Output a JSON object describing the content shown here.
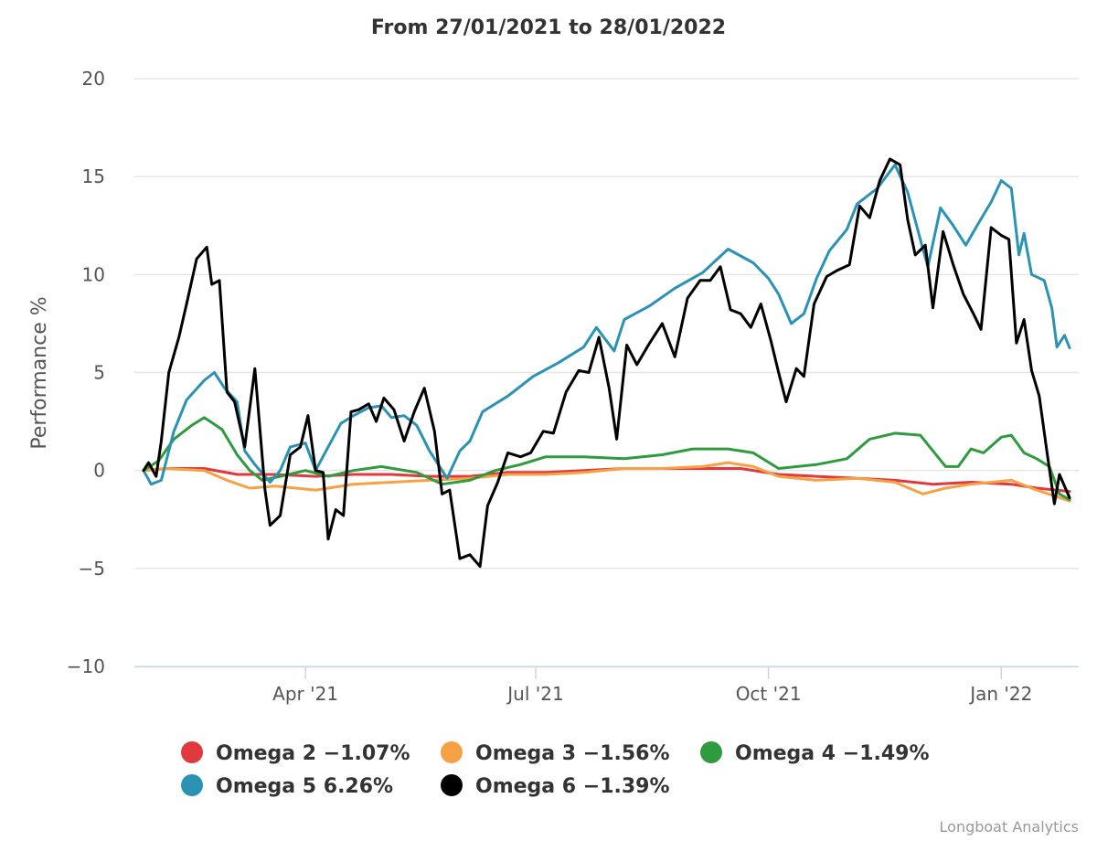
{
  "chart_data": {
    "type": "line",
    "title": "From 27/01/2021 to 28/01/2022",
    "ylabel": "Performance %",
    "xlabel": "",
    "ylim": [
      -10,
      20
    ],
    "yticks": [
      -10,
      -5,
      0,
      5,
      10,
      15,
      20
    ],
    "ytick_labels": [
      "−10",
      "−5",
      "0",
      "5",
      "10",
      "15",
      "20"
    ],
    "xlim": [
      "2021-01-27",
      "2022-01-28"
    ],
    "xticks": [
      {
        "date": "2021-04-01",
        "label": "Apr '21"
      },
      {
        "date": "2021-07-01",
        "label": "Jul '21"
      },
      {
        "date": "2021-10-01",
        "label": "Oct '21"
      },
      {
        "date": "2022-01-01",
        "label": "Jan '22"
      }
    ],
    "grid": "horizontal",
    "legend_position": "bottom",
    "credits": "Longboat Analytics",
    "series": [
      {
        "name": "Omega 2",
        "legend_label": "Omega 2 −1.07%",
        "color": "#e0393e",
        "points": [
          [
            "2021-01-27",
            0
          ],
          [
            "2021-02-05",
            0.1
          ],
          [
            "2021-02-20",
            0.1
          ],
          [
            "2021-03-05",
            -0.2
          ],
          [
            "2021-03-20",
            -0.2
          ],
          [
            "2021-04-05",
            -0.3
          ],
          [
            "2021-04-20",
            -0.2
          ],
          [
            "2021-05-05",
            -0.2
          ],
          [
            "2021-05-20",
            -0.3
          ],
          [
            "2021-06-05",
            -0.3
          ],
          [
            "2021-06-20",
            -0.1
          ],
          [
            "2021-07-05",
            -0.1
          ],
          [
            "2021-07-20",
            0
          ],
          [
            "2021-08-05",
            0.1
          ],
          [
            "2021-08-20",
            0.1
          ],
          [
            "2021-09-05",
            0.1
          ],
          [
            "2021-09-20",
            0.1
          ],
          [
            "2021-10-05",
            -0.2
          ],
          [
            "2021-10-20",
            -0.3
          ],
          [
            "2021-11-05",
            -0.4
          ],
          [
            "2021-11-20",
            -0.5
          ],
          [
            "2021-12-05",
            -0.7
          ],
          [
            "2021-12-20",
            -0.6
          ],
          [
            "2022-01-05",
            -0.7
          ],
          [
            "2022-01-15",
            -0.9
          ],
          [
            "2022-01-28",
            -1.07
          ]
        ]
      },
      {
        "name": "Omega 3",
        "legend_label": "Omega 3 −1.56%",
        "color": "#f7a145",
        "points": [
          [
            "2021-01-27",
            0
          ],
          [
            "2021-02-05",
            0.1
          ],
          [
            "2021-02-20",
            0
          ],
          [
            "2021-03-01",
            -0.5
          ],
          [
            "2021-03-10",
            -0.9
          ],
          [
            "2021-03-20",
            -0.8
          ],
          [
            "2021-04-05",
            -1.0
          ],
          [
            "2021-04-20",
            -0.7
          ],
          [
            "2021-05-05",
            -0.6
          ],
          [
            "2021-05-20",
            -0.5
          ],
          [
            "2021-06-05",
            -0.4
          ],
          [
            "2021-06-20",
            -0.2
          ],
          [
            "2021-07-05",
            -0.2
          ],
          [
            "2021-07-20",
            -0.1
          ],
          [
            "2021-08-05",
            0.1
          ],
          [
            "2021-08-20",
            0.1
          ],
          [
            "2021-09-05",
            0.2
          ],
          [
            "2021-09-15",
            0.4
          ],
          [
            "2021-09-25",
            0.2
          ],
          [
            "2021-10-05",
            -0.3
          ],
          [
            "2021-10-20",
            -0.5
          ],
          [
            "2021-11-05",
            -0.4
          ],
          [
            "2021-11-20",
            -0.6
          ],
          [
            "2021-12-01",
            -1.2
          ],
          [
            "2021-12-10",
            -0.9
          ],
          [
            "2021-12-20",
            -0.7
          ],
          [
            "2022-01-05",
            -0.5
          ],
          [
            "2022-01-15",
            -1.0
          ],
          [
            "2022-01-28",
            -1.56
          ]
        ]
      },
      {
        "name": "Omega 4",
        "legend_label": "Omega 4 −1.49%",
        "color": "#2f9b3f",
        "points": [
          [
            "2021-01-27",
            0
          ],
          [
            "2021-02-02",
            0.5
          ],
          [
            "2021-02-08",
            1.6
          ],
          [
            "2021-02-15",
            2.3
          ],
          [
            "2021-02-20",
            2.7
          ],
          [
            "2021-02-27",
            2.1
          ],
          [
            "2021-03-05",
            0.8
          ],
          [
            "2021-03-10",
            0
          ],
          [
            "2021-03-15",
            -0.5
          ],
          [
            "2021-03-22",
            -0.3
          ],
          [
            "2021-04-01",
            0
          ],
          [
            "2021-04-10",
            -0.3
          ],
          [
            "2021-04-20",
            0
          ],
          [
            "2021-05-01",
            0.2
          ],
          [
            "2021-05-15",
            -0.1
          ],
          [
            "2021-05-25",
            -0.7
          ],
          [
            "2021-06-05",
            -0.5
          ],
          [
            "2021-06-15",
            0
          ],
          [
            "2021-06-25",
            0.3
          ],
          [
            "2021-07-05",
            0.7
          ],
          [
            "2021-07-20",
            0.7
          ],
          [
            "2021-08-05",
            0.6
          ],
          [
            "2021-08-20",
            0.8
          ],
          [
            "2021-09-01",
            1.1
          ],
          [
            "2021-09-15",
            1.1
          ],
          [
            "2021-09-25",
            0.9
          ],
          [
            "2021-10-05",
            0.1
          ],
          [
            "2021-10-20",
            0.3
          ],
          [
            "2021-11-01",
            0.6
          ],
          [
            "2021-11-10",
            1.6
          ],
          [
            "2021-11-20",
            1.9
          ],
          [
            "2021-11-30",
            1.8
          ],
          [
            "2021-12-05",
            1.0
          ],
          [
            "2021-12-10",
            0.2
          ],
          [
            "2021-12-15",
            0.2
          ],
          [
            "2021-12-20",
            1.1
          ],
          [
            "2021-12-25",
            0.9
          ],
          [
            "2022-01-01",
            1.7
          ],
          [
            "2022-01-05",
            1.8
          ],
          [
            "2022-01-10",
            0.9
          ],
          [
            "2022-01-15",
            0.6
          ],
          [
            "2022-01-20",
            0.2
          ],
          [
            "2022-01-24",
            -1.2
          ],
          [
            "2022-01-28",
            -1.49
          ]
        ]
      },
      {
        "name": "Omega 5",
        "legend_label": "Omega 5 6.26%",
        "color": "#2a93b3",
        "points": [
          [
            "2021-01-27",
            0
          ],
          [
            "2021-01-30",
            -0.7
          ],
          [
            "2021-02-03",
            -0.5
          ],
          [
            "2021-02-08",
            2.0
          ],
          [
            "2021-02-13",
            3.6
          ],
          [
            "2021-02-20",
            4.6
          ],
          [
            "2021-02-24",
            5.0
          ],
          [
            "2021-02-28",
            4.2
          ],
          [
            "2021-03-05",
            3.5
          ],
          [
            "2021-03-08",
            1.0
          ],
          [
            "2021-03-12",
            0.3
          ],
          [
            "2021-03-18",
            -0.6
          ],
          [
            "2021-03-22",
            0
          ],
          [
            "2021-03-26",
            1.2
          ],
          [
            "2021-04-01",
            1.4
          ],
          [
            "2021-04-05",
            0
          ],
          [
            "2021-04-10",
            1.2
          ],
          [
            "2021-04-15",
            2.4
          ],
          [
            "2021-04-20",
            2.8
          ],
          [
            "2021-04-26",
            3.2
          ],
          [
            "2021-05-01",
            3.3
          ],
          [
            "2021-05-05",
            2.7
          ],
          [
            "2021-05-10",
            2.8
          ],
          [
            "2021-05-15",
            2.3
          ],
          [
            "2021-05-20",
            1.0
          ],
          [
            "2021-05-27",
            -0.4
          ],
          [
            "2021-06-01",
            1.0
          ],
          [
            "2021-06-05",
            1.5
          ],
          [
            "2021-06-10",
            3.0
          ],
          [
            "2021-06-20",
            3.8
          ],
          [
            "2021-06-30",
            4.8
          ],
          [
            "2021-07-10",
            5.5
          ],
          [
            "2021-07-20",
            6.3
          ],
          [
            "2021-07-25",
            7.3
          ],
          [
            "2021-08-01",
            6.1
          ],
          [
            "2021-08-05",
            7.7
          ],
          [
            "2021-08-15",
            8.4
          ],
          [
            "2021-08-25",
            9.3
          ],
          [
            "2021-09-05",
            10.1
          ],
          [
            "2021-09-15",
            11.3
          ],
          [
            "2021-09-25",
            10.6
          ],
          [
            "2021-10-01",
            9.8
          ],
          [
            "2021-10-05",
            9.0
          ],
          [
            "2021-10-10",
            7.5
          ],
          [
            "2021-10-15",
            8.0
          ],
          [
            "2021-10-20",
            9.8
          ],
          [
            "2021-10-25",
            11.2
          ],
          [
            "2021-11-01",
            12.3
          ],
          [
            "2021-11-05",
            13.6
          ],
          [
            "2021-11-13",
            14.4
          ],
          [
            "2021-11-20",
            15.6
          ],
          [
            "2021-11-25",
            14.2
          ],
          [
            "2021-11-30",
            11.8
          ],
          [
            "2021-12-03",
            10.4
          ],
          [
            "2021-12-08",
            13.4
          ],
          [
            "2021-12-13",
            12.5
          ],
          [
            "2021-12-18",
            11.5
          ],
          [
            "2021-12-22",
            12.4
          ],
          [
            "2021-12-28",
            13.7
          ],
          [
            "2022-01-01",
            14.8
          ],
          [
            "2022-01-05",
            14.4
          ],
          [
            "2022-01-08",
            11.0
          ],
          [
            "2022-01-10",
            12.1
          ],
          [
            "2022-01-13",
            10.0
          ],
          [
            "2022-01-18",
            9.7
          ],
          [
            "2022-01-21",
            8.3
          ],
          [
            "2022-01-23",
            6.3
          ],
          [
            "2022-01-26",
            6.9
          ],
          [
            "2022-01-28",
            6.26
          ]
        ]
      },
      {
        "name": "Omega 6",
        "legend_label": "Omega 6 −1.39%",
        "color": "#000000",
        "points": [
          [
            "2021-01-27",
            0
          ],
          [
            "2021-01-29",
            0.4
          ],
          [
            "2021-02-01",
            -0.3
          ],
          [
            "2021-02-03",
            1.5
          ],
          [
            "2021-02-06",
            5.0
          ],
          [
            "2021-02-10",
            6.8
          ],
          [
            "2021-02-13",
            8.5
          ],
          [
            "2021-02-17",
            10.8
          ],
          [
            "2021-02-21",
            11.4
          ],
          [
            "2021-02-23",
            9.5
          ],
          [
            "2021-02-26",
            9.7
          ],
          [
            "2021-03-01",
            4.0
          ],
          [
            "2021-03-04",
            3.5
          ],
          [
            "2021-03-08",
            1.2
          ],
          [
            "2021-03-12",
            5.2
          ],
          [
            "2021-03-16",
            -1.0
          ],
          [
            "2021-03-18",
            -2.8
          ],
          [
            "2021-03-22",
            -2.3
          ],
          [
            "2021-03-26",
            0.8
          ],
          [
            "2021-03-30",
            1.2
          ],
          [
            "2021-04-02",
            2.8
          ],
          [
            "2021-04-05",
            0
          ],
          [
            "2021-04-08",
            -0.1
          ],
          [
            "2021-04-10",
            -3.5
          ],
          [
            "2021-04-13",
            -2.0
          ],
          [
            "2021-04-16",
            -2.3
          ],
          [
            "2021-04-19",
            3.0
          ],
          [
            "2021-04-22",
            3.1
          ],
          [
            "2021-04-26",
            3.4
          ],
          [
            "2021-04-29",
            2.5
          ],
          [
            "2021-05-02",
            3.7
          ],
          [
            "2021-05-06",
            3.1
          ],
          [
            "2021-05-10",
            1.5
          ],
          [
            "2021-05-14",
            3.0
          ],
          [
            "2021-05-18",
            4.2
          ],
          [
            "2021-05-22",
            2.0
          ],
          [
            "2021-05-25",
            -1.2
          ],
          [
            "2021-05-28",
            -1.0
          ],
          [
            "2021-06-01",
            -4.5
          ],
          [
            "2021-06-05",
            -4.3
          ],
          [
            "2021-06-09",
            -4.9
          ],
          [
            "2021-06-12",
            -1.8
          ],
          [
            "2021-06-16",
            -0.6
          ],
          [
            "2021-06-20",
            0.9
          ],
          [
            "2021-06-25",
            0.7
          ],
          [
            "2021-06-29",
            0.9
          ],
          [
            "2021-07-04",
            2.0
          ],
          [
            "2021-07-08",
            1.9
          ],
          [
            "2021-07-13",
            4.0
          ],
          [
            "2021-07-18",
            5.1
          ],
          [
            "2021-07-22",
            5.0
          ],
          [
            "2021-07-26",
            6.8
          ],
          [
            "2021-07-30",
            4.2
          ],
          [
            "2021-08-02",
            1.6
          ],
          [
            "2021-08-06",
            6.4
          ],
          [
            "2021-08-10",
            5.4
          ],
          [
            "2021-08-15",
            6.5
          ],
          [
            "2021-08-20",
            7.5
          ],
          [
            "2021-08-25",
            5.8
          ],
          [
            "2021-08-30",
            8.8
          ],
          [
            "2021-09-04",
            9.7
          ],
          [
            "2021-09-08",
            9.7
          ],
          [
            "2021-09-12",
            10.4
          ],
          [
            "2021-09-16",
            8.2
          ],
          [
            "2021-09-20",
            8.0
          ],
          [
            "2021-09-24",
            7.3
          ],
          [
            "2021-09-28",
            8.5
          ],
          [
            "2021-10-02",
            6.6
          ],
          [
            "2021-10-05",
            5.0
          ],
          [
            "2021-10-08",
            3.5
          ],
          [
            "2021-10-12",
            5.2
          ],
          [
            "2021-10-15",
            4.8
          ],
          [
            "2021-10-19",
            8.5
          ],
          [
            "2021-10-24",
            9.9
          ],
          [
            "2021-10-28",
            10.2
          ],
          [
            "2021-11-02",
            10.5
          ],
          [
            "2021-11-06",
            13.5
          ],
          [
            "2021-11-10",
            12.9
          ],
          [
            "2021-11-14",
            14.8
          ],
          [
            "2021-11-18",
            15.9
          ],
          [
            "2021-11-22",
            15.6
          ],
          [
            "2021-11-25",
            12.8
          ],
          [
            "2021-11-28",
            11.0
          ],
          [
            "2021-12-02",
            11.5
          ],
          [
            "2021-12-05",
            8.3
          ],
          [
            "2021-12-09",
            12.2
          ],
          [
            "2021-12-13",
            10.5
          ],
          [
            "2021-12-17",
            9.0
          ],
          [
            "2021-12-21",
            8.0
          ],
          [
            "2021-12-24",
            7.2
          ],
          [
            "2021-12-28",
            12.4
          ],
          [
            "2022-01-01",
            12.0
          ],
          [
            "2022-01-04",
            11.8
          ],
          [
            "2022-01-07",
            6.5
          ],
          [
            "2022-01-10",
            7.7
          ],
          [
            "2022-01-13",
            5.1
          ],
          [
            "2022-01-16",
            3.8
          ],
          [
            "2022-01-19",
            1.0
          ],
          [
            "2022-01-22",
            -1.7
          ],
          [
            "2022-01-24",
            -0.2
          ],
          [
            "2022-01-28",
            -1.39
          ]
        ]
      }
    ]
  }
}
